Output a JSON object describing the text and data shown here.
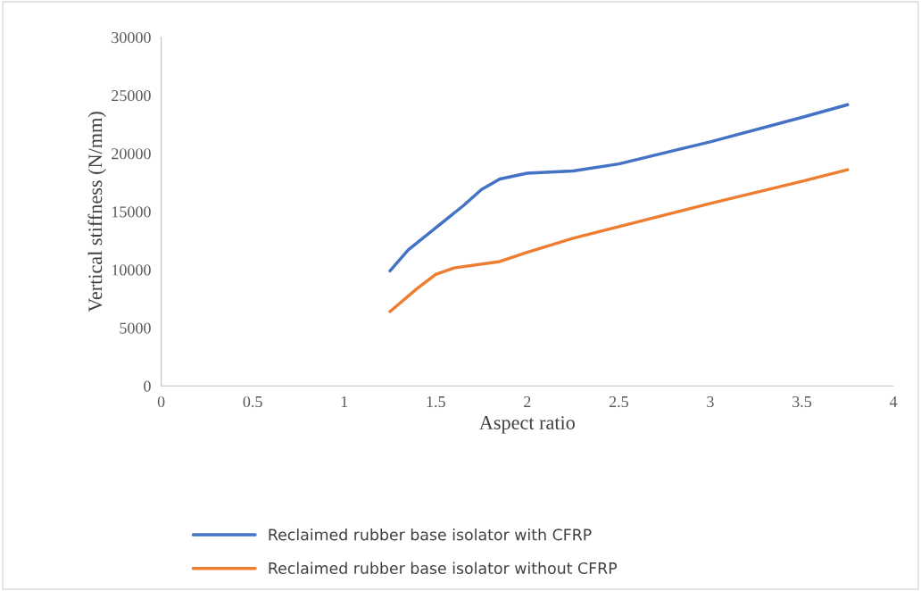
{
  "chart_data": {
    "type": "line",
    "xlabel": "Aspect ratio",
    "ylabel": "Vertical stiffness (N/mm)",
    "xlim": [
      0,
      4
    ],
    "xticks": [
      0,
      0.5,
      1,
      1.5,
      2,
      2.5,
      3,
      3.5,
      4
    ],
    "ylim": [
      0,
      30000
    ],
    "yticks": [
      0,
      5000,
      10000,
      15000,
      20000,
      25000,
      30000
    ],
    "grid": false,
    "legend": "bottom",
    "marker": "none",
    "line_style": "solid",
    "series": [
      {
        "name": "Reclaimed rubber base isolator with CFRP",
        "color": "#4472c4",
        "x": [
          1.25,
          1.35,
          1.5,
          1.65,
          1.75,
          1.85,
          2,
          2.25,
          2.5,
          3,
          3.5,
          3.75
        ],
        "values": [
          9900,
          11700,
          13600,
          15500,
          16900,
          17800,
          18300,
          18500,
          19100,
          21000,
          23100,
          24200
        ]
      },
      {
        "name": "Reclaimed rubber base isolator without CFRP",
        "color": "#ed7d31",
        "x": [
          1.25,
          1.4,
          1.5,
          1.6,
          1.85,
          2,
          2.25,
          2.5,
          3,
          3.5,
          3.75
        ],
        "values": [
          6400,
          8400,
          9600,
          10150,
          10700,
          11500,
          12700,
          13700,
          15700,
          17600,
          18600
        ]
      }
    ]
  }
}
